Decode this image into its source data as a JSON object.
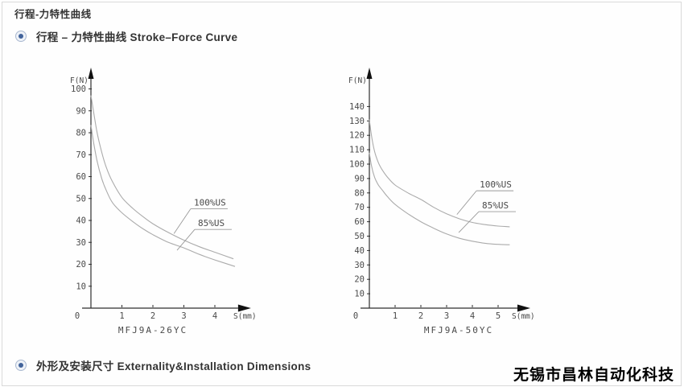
{
  "header": {
    "title": "行程-力特性曲线"
  },
  "sections": [
    {
      "icon": "radio-bullet-icon",
      "label": "行程 – 力特性曲线 Stroke–Force Curve"
    },
    {
      "icon": "radio-bullet-icon",
      "label": "外形及安装尺寸 Externality&Installation Dimensions"
    }
  ],
  "footer": {
    "company": "无锡市昌林自动化科技"
  },
  "colors": {
    "bullet": "#41639b",
    "axis": "#2e2e2e",
    "curve": "#ababab",
    "tick_text": "#4a4a4a",
    "border": "#d9d9d9"
  },
  "chart_data": [
    {
      "type": "line",
      "title": "MFJ9A-26YC",
      "xlabel": "S(mm)",
      "ylabel": "F(N)",
      "xlim": [
        0,
        4.75
      ],
      "ylim": [
        0,
        105
      ],
      "xticks": [
        0,
        1,
        2,
        3,
        4
      ],
      "yticks": [
        10,
        20,
        30,
        40,
        50,
        60,
        70,
        80,
        90,
        100
      ],
      "grid": false,
      "legend": "inline-annotations",
      "series": [
        {
          "name": "100%US",
          "points": [
            [
              0,
              97
            ],
            [
              0.08,
              90
            ],
            [
              0.2,
              80
            ],
            [
              0.35,
              71
            ],
            [
              0.5,
              64
            ],
            [
              0.7,
              57.5
            ],
            [
              1,
              50.5
            ],
            [
              1.35,
              45.5
            ],
            [
              1.7,
              41.5
            ],
            [
              2,
              38.5
            ],
            [
              2.5,
              34.5
            ],
            [
              3,
              31
            ],
            [
              3.5,
              28
            ],
            [
              4,
              25.5
            ],
            [
              4.6,
              22.5
            ]
          ]
        },
        {
          "name": "85%US",
          "points": [
            [
              0,
              83.5
            ],
            [
              0.08,
              76
            ],
            [
              0.2,
              67
            ],
            [
              0.35,
              59
            ],
            [
              0.5,
              53.5
            ],
            [
              0.7,
              48
            ],
            [
              1,
              43.5
            ],
            [
              1.35,
              39.5
            ],
            [
              1.7,
              36
            ],
            [
              2,
              33.5
            ],
            [
              2.5,
              30
            ],
            [
              3,
              27.5
            ],
            [
              3.5,
              24.5
            ],
            [
              4,
              22
            ],
            [
              4.65,
              19
            ]
          ]
        }
      ],
      "annotations": [
        {
          "label": "100%US",
          "label_x": 3.22,
          "label_y": 45.3,
          "point_x": 2.68,
          "point_y": 34
        },
        {
          "label": "85%US",
          "label_x": 3.35,
          "label_y": 35.9,
          "point_x": 2.78,
          "point_y": 26.4
        }
      ]
    },
    {
      "type": "line",
      "title": "MFJ9A-50YC",
      "xlabel": "S(mm)",
      "ylabel": "F(N)",
      "xlim": [
        0,
        5.75
      ],
      "ylim": [
        0,
        145
      ],
      "xticks": [
        0,
        1,
        2,
        3,
        4,
        5
      ],
      "yticks": [
        10,
        20,
        30,
        40,
        50,
        60,
        70,
        80,
        90,
        100,
        110,
        120,
        130,
        140
      ],
      "grid": false,
      "legend": "inline-annotations",
      "series": [
        {
          "name": "100%US",
          "points": [
            [
              0,
              131
            ],
            [
              0.08,
              120
            ],
            [
              0.2,
              109
            ],
            [
              0.35,
              101
            ],
            [
              0.5,
              96
            ],
            [
              0.7,
              91
            ],
            [
              1,
              85.5
            ],
            [
              1.5,
              80
            ],
            [
              2,
              75.5
            ],
            [
              2.5,
              70
            ],
            [
              3,
              65.5
            ],
            [
              3.5,
              62
            ],
            [
              4,
              59.5
            ],
            [
              4.5,
              58
            ],
            [
              5,
              57
            ],
            [
              5.45,
              56.5
            ]
          ]
        },
        {
          "name": "85%US",
          "points": [
            [
              0,
              108
            ],
            [
              0.08,
              99
            ],
            [
              0.2,
              91
            ],
            [
              0.35,
              85.5
            ],
            [
              0.5,
              82
            ],
            [
              0.7,
              77.5
            ],
            [
              1,
              72
            ],
            [
              1.5,
              65.5
            ],
            [
              2,
              60
            ],
            [
              2.5,
              55.5
            ],
            [
              3,
              51.5
            ],
            [
              3.5,
              48.5
            ],
            [
              4,
              46.5
            ],
            [
              4.5,
              45
            ],
            [
              5,
              44.3
            ],
            [
              5.45,
              44
            ]
          ]
        }
      ],
      "annotations": [
        {
          "label": "100%US",
          "label_x": 4.16,
          "label_y": 81.5,
          "point_x": 3.4,
          "point_y": 65
        },
        {
          "label": "85%US",
          "label_x": 4.25,
          "label_y": 67,
          "point_x": 3.47,
          "point_y": 52.5
        }
      ]
    }
  ]
}
